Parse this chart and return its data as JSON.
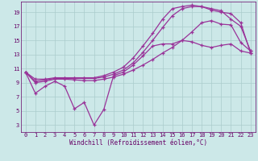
{
  "xlabel": "Windchill (Refroidissement éolien,°C)",
  "bg_color": "#cce8e8",
  "grid_color": "#aacccc",
  "line_color": "#993399",
  "xlim": [
    -0.5,
    23.5
  ],
  "ylim": [
    2,
    20.5
  ],
  "xticks": [
    0,
    1,
    2,
    3,
    4,
    5,
    6,
    7,
    8,
    9,
    10,
    11,
    12,
    13,
    14,
    15,
    16,
    17,
    18,
    19,
    20,
    21,
    22,
    23
  ],
  "yticks": [
    3,
    5,
    7,
    9,
    11,
    13,
    15,
    17,
    19
  ],
  "line1_x": [
    0,
    1,
    2,
    3,
    4,
    5,
    6,
    7,
    8,
    9,
    10,
    11,
    12,
    13,
    14,
    15,
    16,
    17,
    18,
    19,
    20,
    21,
    22,
    23
  ],
  "line1_y": [
    10.5,
    7.5,
    8.5,
    9.2,
    8.5,
    5.3,
    6.2,
    3.0,
    5.2,
    10.0,
    10.5,
    11.5,
    12.8,
    14.2,
    14.5,
    14.5,
    15.0,
    14.8,
    14.3,
    14.0,
    14.3,
    14.5,
    13.5,
    13.2
  ],
  "line2_x": [
    0,
    1,
    2,
    3,
    4,
    5,
    6,
    7,
    8,
    9,
    10,
    11,
    12,
    13,
    14,
    15,
    16,
    17,
    18,
    19,
    20,
    21,
    22,
    23
  ],
  "line2_y": [
    10.5,
    9.0,
    9.2,
    9.5,
    9.5,
    9.4,
    9.3,
    9.3,
    9.5,
    9.8,
    10.2,
    10.8,
    11.5,
    12.3,
    13.2,
    14.0,
    15.0,
    16.2,
    17.5,
    17.8,
    17.3,
    17.2,
    14.7,
    13.5
  ],
  "line3_x": [
    0,
    1,
    2,
    3,
    4,
    5,
    6,
    7,
    8,
    9,
    10,
    11,
    12,
    13,
    14,
    15,
    16,
    17,
    18,
    19,
    20,
    21,
    22,
    23
  ],
  "line3_y": [
    10.5,
    9.2,
    9.4,
    9.6,
    9.6,
    9.6,
    9.6,
    9.6,
    9.8,
    10.2,
    10.8,
    11.8,
    13.3,
    15.0,
    16.8,
    18.5,
    19.5,
    19.8,
    19.8,
    19.3,
    19.0,
    18.8,
    17.5,
    13.2
  ],
  "line4_x": [
    0,
    1,
    2,
    3,
    4,
    5,
    6,
    7,
    8,
    9,
    10,
    11,
    12,
    13,
    14,
    15,
    16,
    17,
    18,
    19,
    20,
    21,
    22,
    23
  ],
  "line4_y": [
    10.5,
    9.5,
    9.5,
    9.7,
    9.7,
    9.7,
    9.7,
    9.7,
    10.0,
    10.5,
    11.2,
    12.5,
    14.2,
    16.0,
    18.0,
    19.5,
    19.8,
    20.0,
    19.8,
    19.5,
    19.2,
    18.0,
    17.0,
    13.5
  ]
}
